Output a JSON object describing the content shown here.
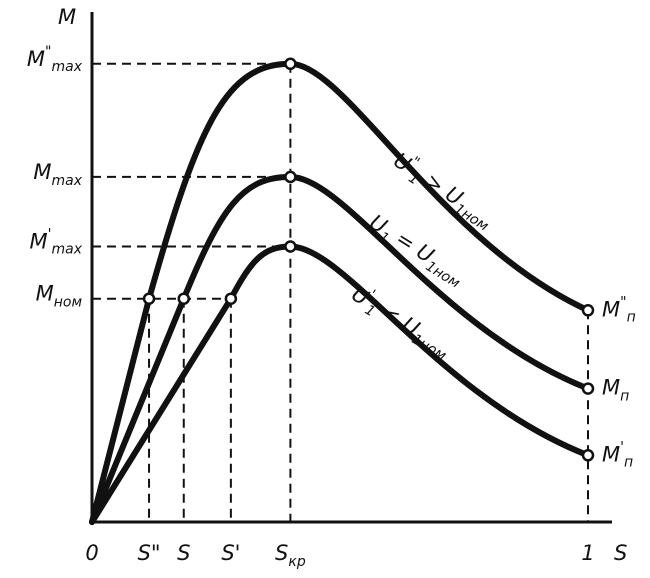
{
  "chart_data": {
    "type": "line",
    "title": "",
    "xlabel": "S",
    "ylabel": "M",
    "x_ticks": [
      {
        "key": "0",
        "main": "0",
        "sup": "",
        "sub": ""
      },
      {
        "key": "s2",
        "main": "S\"",
        "sup": "",
        "sub": ""
      },
      {
        "key": "s",
        "main": "S",
        "sup": "",
        "sub": ""
      },
      {
        "key": "s1",
        "main": "S'",
        "sup": "",
        "sub": ""
      },
      {
        "key": "skr",
        "main": "S",
        "sup": "",
        "sub": "кр"
      },
      {
        "key": "one",
        "main": "1",
        "sup": "",
        "sub": ""
      }
    ],
    "y_ticks": [
      {
        "key": "m2max",
        "main": "M",
        "sup": "\"",
        "sub": "max"
      },
      {
        "key": "mmax",
        "main": "M",
        "sup": "",
        "sub": "max"
      },
      {
        "key": "m1max",
        "main": "M",
        "sup": "'",
        "sub": "max"
      },
      {
        "key": "mnom",
        "main": "M",
        "sup": "",
        "sub": "ном"
      }
    ],
    "series": [
      {
        "name": "U₁\" > U₁ном",
        "label_main": "U",
        "label_sub": "1",
        "label_sup": "\"",
        "label_rest": " > U",
        "label_rest_sub": "1ном",
        "end_label": {
          "main": "M",
          "sup": "\"",
          "sub": "п"
        },
        "points": [
          [
            0,
            0
          ],
          [
            0.115,
            0.77
          ],
          [
            0.4,
            1.58
          ],
          [
            1.0,
            0.73
          ]
        ]
      },
      {
        "name": "U₁ = U₁ном",
        "label_main": "U",
        "label_sub": "1",
        "label_sup": "",
        "label_rest": " = U",
        "label_rest_sub": "1ном",
        "end_label": {
          "main": "M",
          "sup": "",
          "sub": "п"
        },
        "points": [
          [
            0,
            0
          ],
          [
            0.185,
            0.77
          ],
          [
            0.4,
            1.19
          ],
          [
            1.0,
            0.46
          ]
        ]
      },
      {
        "name": "U₁' < U₁ном",
        "label_main": "U",
        "label_sub": "1",
        "label_sup": "'",
        "label_rest": " < U",
        "label_rest_sub": "1ном",
        "end_label": {
          "main": "M",
          "sup": "'",
          "sub": "п"
        },
        "points": [
          [
            0,
            0
          ],
          [
            0.28,
            0.77
          ],
          [
            0.4,
            0.95
          ],
          [
            1.0,
            0.23
          ]
        ]
      }
    ],
    "reference_points": {
      "m_nom": 0.77,
      "s_values": [
        0.115,
        0.185,
        0.28
      ],
      "s_kr": 0.4,
      "m_max_values": [
        1.58,
        1.19,
        0.95
      ]
    },
    "grid": false
  }
}
